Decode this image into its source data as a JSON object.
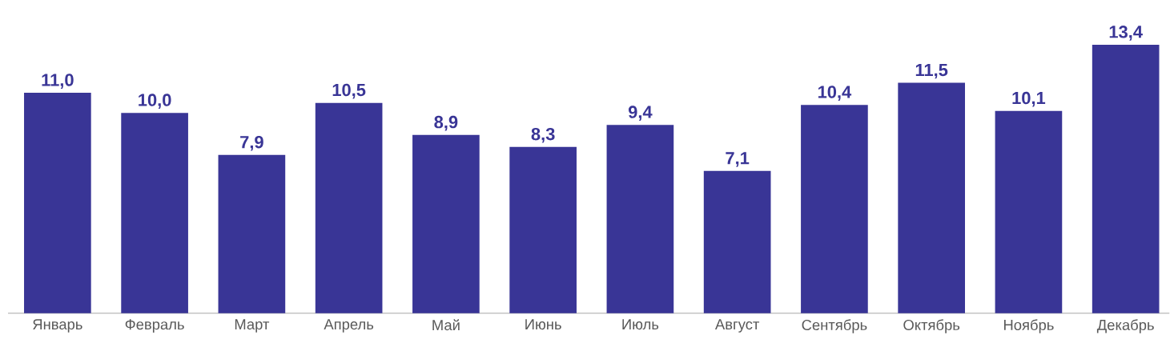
{
  "chart_data": {
    "type": "bar",
    "categories": [
      "Январь",
      "Февраль",
      "Март",
      "Апрель",
      "Май",
      "Июнь",
      "Июль",
      "Август",
      "Сентябрь",
      "Октябрь",
      "Ноябрь",
      "Декабрь"
    ],
    "values": [
      11.0,
      10.0,
      7.9,
      10.5,
      8.9,
      8.3,
      9.4,
      7.1,
      10.4,
      11.5,
      10.1,
      13.4
    ],
    "value_labels": [
      "11,0",
      "10,0",
      "7,9",
      "10,5",
      "8,9",
      "8,3",
      "9,4",
      "7,1",
      "10,4",
      "11,5",
      "10,1",
      "13,4"
    ],
    "color": "#393596"
  }
}
